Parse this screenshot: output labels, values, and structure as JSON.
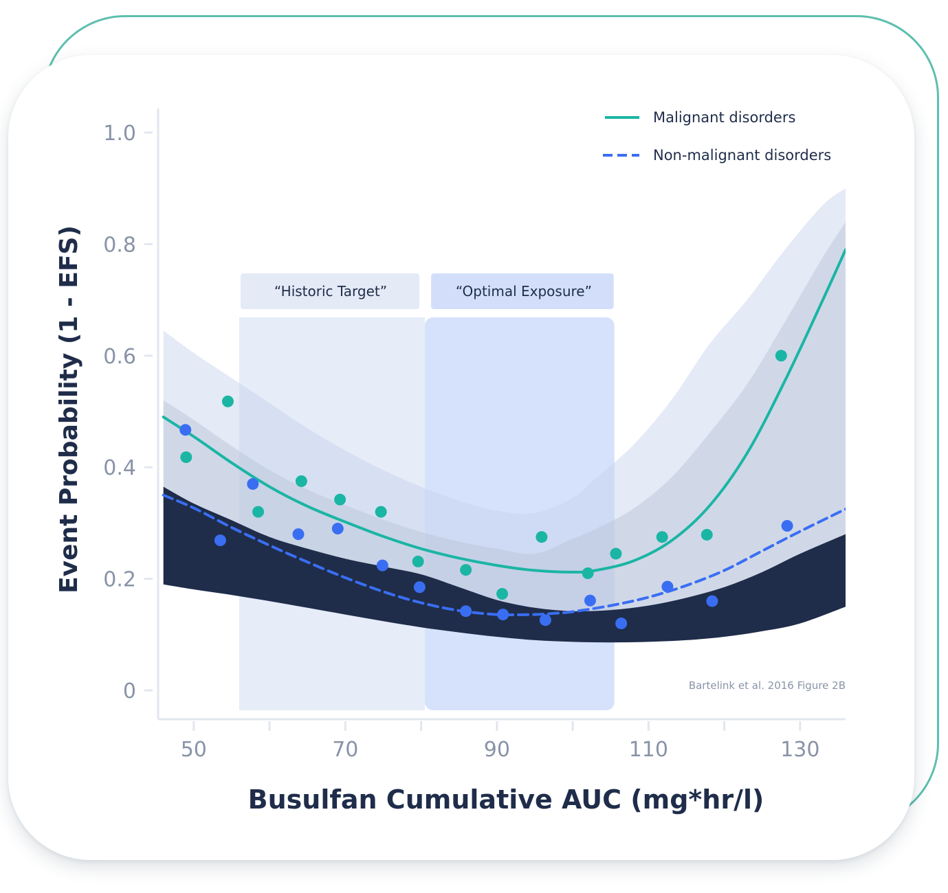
{
  "chart_data": {
    "type": "line",
    "xlabel": "Busulfan Cumulative AUC (mg*hr/l)",
    "ylabel": "Event Probability (1 - EFS)",
    "xlim": [
      45.3,
      136
    ],
    "ylim": [
      0,
      1.0
    ],
    "xticks": [
      50,
      70,
      90,
      110,
      130
    ],
    "yticks": [
      0,
      0.2,
      0.4,
      0.6,
      0.8,
      1.0
    ],
    "ytick_labels": [
      "0",
      "0.2",
      "0.4",
      "0.6",
      "0.8",
      "1.0"
    ],
    "minor_xticks": [
      60,
      80,
      100,
      120
    ],
    "grid": false,
    "legend_position": "top-right",
    "source_note": "Bartelink et al. 2016 Figure 2B",
    "regions": [
      {
        "label": "“Historic Target”",
        "x_range": [
          56,
          80.5
        ],
        "color": "#e6ecf8"
      },
      {
        "label": "“Optimal Exposure”",
        "x_range": [
          80.5,
          105.5
        ],
        "color": "#d6e2fb"
      }
    ],
    "series": [
      {
        "name": "Malignant disorders",
        "color": "#1bb5a4",
        "dash": "solid",
        "curve": {
          "x": [
            46,
            50,
            55,
            60,
            65,
            70,
            75,
            80,
            85,
            90,
            95,
            100,
            103,
            108,
            113,
            118,
            123,
            128,
            133,
            136
          ],
          "y": [
            0.49,
            0.455,
            0.408,
            0.365,
            0.33,
            0.302,
            0.276,
            0.254,
            0.237,
            0.224,
            0.215,
            0.212,
            0.215,
            0.232,
            0.268,
            0.33,
            0.425,
            0.555,
            0.7,
            0.79
          ]
        },
        "band": {
          "x": [
            46,
            50,
            55,
            60,
            65,
            70,
            75,
            80,
            85,
            90,
            95,
            100,
            103,
            108,
            113,
            118,
            123,
            128,
            133,
            136
          ],
          "upper": [
            0.645,
            0.605,
            0.56,
            0.515,
            0.47,
            0.43,
            0.395,
            0.365,
            0.34,
            0.322,
            0.318,
            0.345,
            0.38,
            0.44,
            0.52,
            0.62,
            0.7,
            0.79,
            0.87,
            0.9
          ],
          "lower": [
            0.19,
            0.181,
            0.171,
            0.16,
            0.148,
            0.136,
            0.124,
            0.113,
            0.104,
            0.096,
            0.09,
            0.087,
            0.086,
            0.087,
            0.09,
            0.096,
            0.106,
            0.12,
            0.14,
            0.155
          ]
        },
        "points": [
          {
            "x": 49.0,
            "y": 0.418
          },
          {
            "x": 54.5,
            "y": 0.518
          },
          {
            "x": 58.5,
            "y": 0.32
          },
          {
            "x": 64.2,
            "y": 0.375
          },
          {
            "x": 69.3,
            "y": 0.342
          },
          {
            "x": 74.7,
            "y": 0.32
          },
          {
            "x": 79.6,
            "y": 0.231
          },
          {
            "x": 85.9,
            "y": 0.216
          },
          {
            "x": 90.7,
            "y": 0.173
          },
          {
            "x": 95.9,
            "y": 0.275
          },
          {
            "x": 102.0,
            "y": 0.21
          },
          {
            "x": 105.7,
            "y": 0.245
          },
          {
            "x": 111.8,
            "y": 0.275
          },
          {
            "x": 117.7,
            "y": 0.279
          },
          {
            "x": 127.5,
            "y": 0.6
          }
        ]
      },
      {
        "name": "Non-malignant disorders",
        "color": "#3a6ef2",
        "dash": "dashed",
        "curve": {
          "x": [
            46,
            50,
            55,
            60,
            65,
            70,
            75,
            80,
            85,
            90,
            95,
            97.5,
            100,
            105,
            110,
            115,
            120,
            125,
            130,
            136
          ],
          "y": [
            0.35,
            0.327,
            0.292,
            0.26,
            0.23,
            0.202,
            0.177,
            0.157,
            0.143,
            0.136,
            0.136,
            0.138,
            0.141,
            0.152,
            0.167,
            0.188,
            0.215,
            0.25,
            0.285,
            0.325
          ]
        },
        "band": {
          "x": [
            46,
            50,
            55,
            60,
            65,
            70,
            75,
            80,
            85,
            90,
            95,
            100,
            105,
            110,
            115,
            120,
            125,
            130,
            136
          ],
          "upper": [
            0.365,
            0.335,
            0.305,
            0.275,
            0.254,
            0.236,
            0.222,
            0.208,
            0.185,
            0.162,
            0.148,
            0.142,
            0.144,
            0.152,
            0.166,
            0.185,
            0.212,
            0.245,
            0.28
          ],
          "lower": [
            0.19,
            0.181,
            0.171,
            0.16,
            0.148,
            0.136,
            0.124,
            0.113,
            0.104,
            0.096,
            0.09,
            0.087,
            0.086,
            0.087,
            0.09,
            0.096,
            0.106,
            0.12,
            0.15
          ]
        },
        "points": [
          {
            "x": 48.9,
            "y": 0.467
          },
          {
            "x": 53.5,
            "y": 0.269
          },
          {
            "x": 57.8,
            "y": 0.37
          },
          {
            "x": 63.8,
            "y": 0.28
          },
          {
            "x": 69.0,
            "y": 0.29
          },
          {
            "x": 74.9,
            "y": 0.224
          },
          {
            "x": 79.8,
            "y": 0.185
          },
          {
            "x": 85.9,
            "y": 0.142
          },
          {
            "x": 90.8,
            "y": 0.136
          },
          {
            "x": 96.4,
            "y": 0.126
          },
          {
            "x": 102.3,
            "y": 0.161
          },
          {
            "x": 106.4,
            "y": 0.12
          },
          {
            "x": 112.5,
            "y": 0.186
          },
          {
            "x": 118.4,
            "y": 0.16
          },
          {
            "x": 128.3,
            "y": 0.295
          }
        ]
      }
    ]
  }
}
